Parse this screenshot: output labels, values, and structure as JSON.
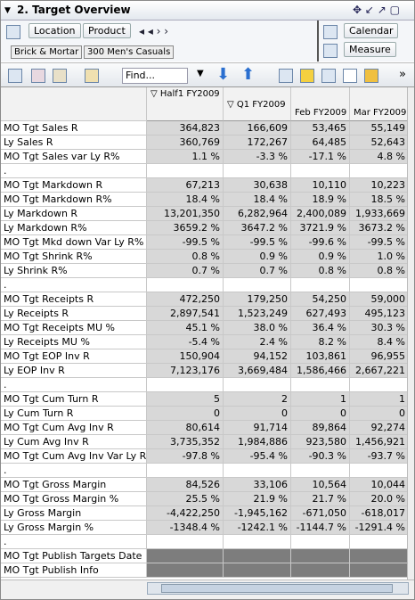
{
  "header": {
    "title": "2. Target Overview"
  },
  "toolbar": {
    "location": "Location",
    "product": "Product",
    "calendar": "Calendar",
    "measure": "Measure",
    "crumb1": "Brick & Mortar",
    "crumb2": "300 Men's Casuals",
    "find": "Find..."
  },
  "table": {
    "columns": [
      "Half1 FY2009",
      "Q1 FY2009",
      "Feb FY2009",
      "Mar FY2009"
    ],
    "rows": [
      {
        "label": "MO Tgt Sales R",
        "values": [
          "364,823",
          "166,609",
          "53,465",
          "55,149"
        ]
      },
      {
        "label": "Ly Sales R",
        "values": [
          "360,769",
          "172,267",
          "64,485",
          "52,643"
        ]
      },
      {
        "label": "MO Tgt Sales var Ly R%",
        "values": [
          "1.1 %",
          "-3.3 %",
          "-17.1 %",
          "4.8 %"
        ]
      },
      {
        "label": ".",
        "values": []
      },
      {
        "label": "MO Tgt Markdown R",
        "values": [
          "67,213",
          "30,638",
          "10,110",
          "10,223"
        ]
      },
      {
        "label": "MO Tgt Markdown R%",
        "values": [
          "18.4 %",
          "18.4 %",
          "18.9 %",
          "18.5 %"
        ]
      },
      {
        "label": "Ly Markdown R",
        "values": [
          "13,201,350",
          "6,282,964",
          "2,400,089",
          "1,933,669"
        ]
      },
      {
        "label": "Ly Markdown R%",
        "values": [
          "3659.2 %",
          "3647.2 %",
          "3721.9 %",
          "3673.2 %"
        ]
      },
      {
        "label": "MO Tgt Mkd down Var Ly R%",
        "values": [
          "-99.5 %",
          "-99.5 %",
          "-99.6 %",
          "-99.5 %"
        ]
      },
      {
        "label": "MO Tgt Shrink R%",
        "values": [
          "0.8 %",
          "0.9 %",
          "0.9 %",
          "1.0 %"
        ]
      },
      {
        "label": "Ly Shrink R%",
        "values": [
          "0.7 %",
          "0.7 %",
          "0.8 %",
          "0.8 %"
        ]
      },
      {
        "label": ".",
        "values": []
      },
      {
        "label": "MO Tgt Receipts R",
        "values": [
          "472,250",
          "179,250",
          "54,250",
          "59,000"
        ]
      },
      {
        "label": "Ly Receipts R",
        "values": [
          "2,897,541",
          "1,523,249",
          "627,493",
          "495,123"
        ]
      },
      {
        "label": "MO Tgt Receipts MU %",
        "values": [
          "45.1 %",
          "38.0 %",
          "36.4 %",
          "30.3 %"
        ]
      },
      {
        "label": "Ly Receipts MU %",
        "values": [
          "-5.4 %",
          "2.4 %",
          "8.2 %",
          "8.4 %"
        ]
      },
      {
        "label": "MO Tgt EOP Inv R",
        "values": [
          "150,904",
          "94,152",
          "103,861",
          "96,955"
        ]
      },
      {
        "label": "Ly EOP Inv R",
        "values": [
          "7,123,176",
          "3,669,484",
          "1,586,466",
          "2,667,221"
        ]
      },
      {
        "label": ".",
        "values": []
      },
      {
        "label": "MO Tgt Cum Turn R",
        "values": [
          "5",
          "2",
          "1",
          "1"
        ]
      },
      {
        "label": "Ly Cum Turn R",
        "values": [
          "0",
          "0",
          "0",
          "0"
        ]
      },
      {
        "label": "MO Tgt Cum Avg Inv R",
        "values": [
          "80,614",
          "91,714",
          "89,864",
          "92,274"
        ]
      },
      {
        "label": "Ly Cum Avg Inv R",
        "values": [
          "3,735,352",
          "1,984,886",
          "923,580",
          "1,456,921"
        ]
      },
      {
        "label": "MO Tgt Cum Avg Inv Var Ly R%",
        "values": [
          "-97.8 %",
          "-95.4 %",
          "-90.3 %",
          "-93.7 %"
        ]
      },
      {
        "label": ".",
        "values": []
      },
      {
        "label": "MO Tgt Gross Margin",
        "values": [
          "84,526",
          "33,106",
          "10,564",
          "10,044"
        ]
      },
      {
        "label": "MO Tgt Gross Margin %",
        "values": [
          "25.5 %",
          "21.9 %",
          "21.7 %",
          "20.0 %"
        ]
      },
      {
        "label": "Ly Gross Margin",
        "values": [
          "-4,422,250",
          "-1,945,162",
          "-671,050",
          "-618,017"
        ]
      },
      {
        "label": "Ly Gross Margin %",
        "values": [
          "-1348.4 %",
          "-1242.1 %",
          "-1144.7 %",
          "-1291.4 %"
        ]
      },
      {
        "label": ".",
        "values": []
      },
      {
        "label": "MO Tgt Publish Targets Date",
        "values": []
      },
      {
        "label": "MO Tgt Publish Info",
        "values": []
      }
    ]
  }
}
